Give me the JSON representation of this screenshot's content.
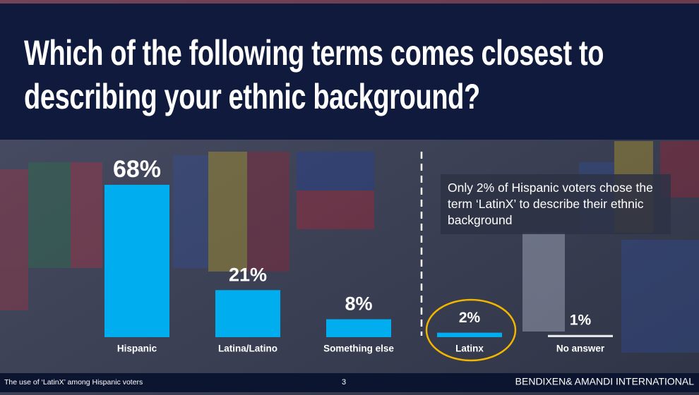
{
  "chart_data": {
    "type": "bar",
    "title": "Which of the following terms comes closest to describing your ethnic background?",
    "categories": [
      "Hispanic",
      "Latina/Latino",
      "Something else",
      "Latinx",
      "No answer"
    ],
    "values": [
      68,
      21,
      8,
      2,
      1
    ],
    "value_labels": [
      "68%",
      "21%",
      "8%",
      "2%",
      "1%"
    ],
    "colors": [
      "#00aeef",
      "#00aeef",
      "#00aeef",
      "#00aeef",
      "#e6e6e6"
    ],
    "annotation": "Only 2% of Hispanic voters chose the term ‘LatinX’ to describe their ethnic background"
  },
  "footer": {
    "left": "The use of ‘LatinX’ among Hispanic voters",
    "page": "3",
    "right": "BENDIXEN& AMANDI INTERNATIONAL"
  }
}
